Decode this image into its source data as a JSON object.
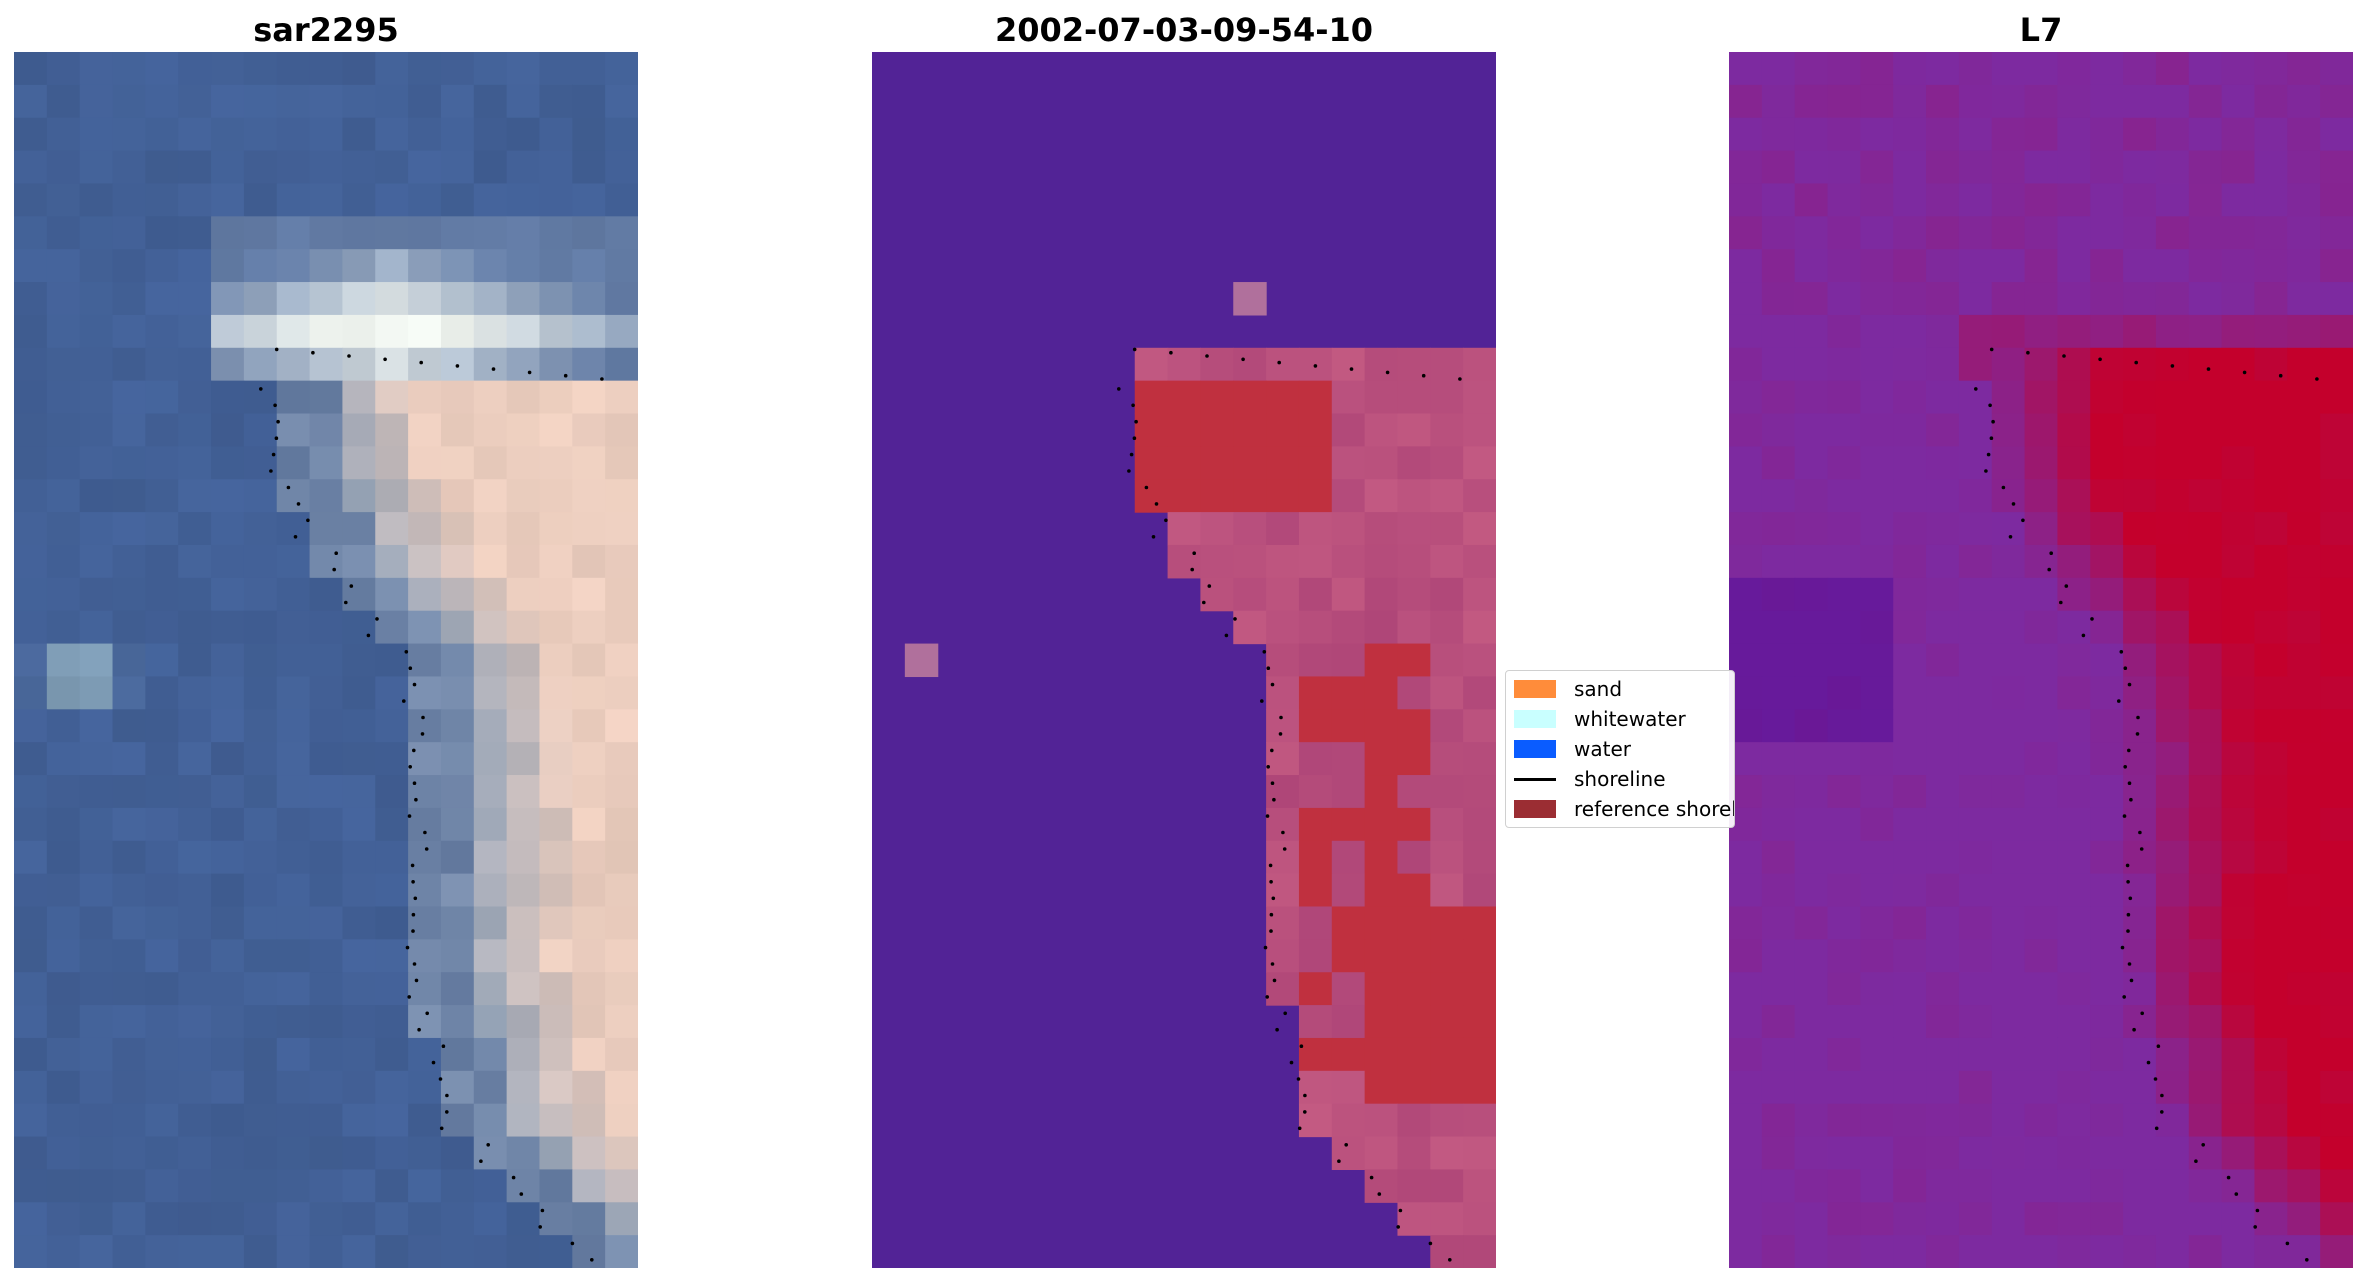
{
  "panels": [
    {
      "id": "rgb",
      "title": "sar2295"
    },
    {
      "id": "classified",
      "title": "2002-07-03-09-54-10"
    },
    {
      "id": "index",
      "title": "L7"
    }
  ],
  "legend": {
    "items": [
      {
        "label": "sand",
        "color": "#ff8c3a",
        "kind": "patch"
      },
      {
        "label": "whitewater",
        "color": "#c9ffff",
        "kind": "patch"
      },
      {
        "label": "water",
        "color": "#0a5cff",
        "kind": "patch"
      },
      {
        "label": "shoreline",
        "color": "#000000",
        "kind": "line"
      },
      {
        "label": "reference shoreline",
        "color": "#9b2d33",
        "kind": "patch"
      }
    ]
  },
  "colors": {
    "water_class_bg": "#522396",
    "sand_overlay": "#c03040",
    "shoreline_dots": "#000000",
    "index_low": "#7a2aa0",
    "index_high": "#c4002c"
  }
}
